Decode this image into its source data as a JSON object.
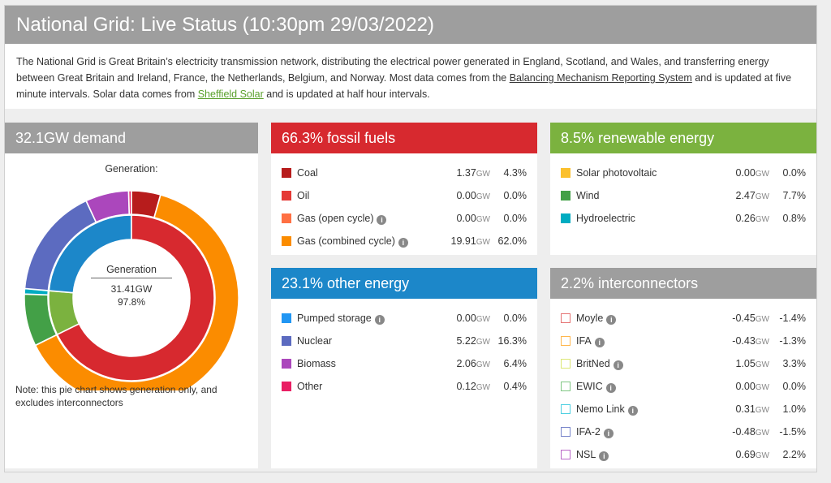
{
  "header": {
    "title": "National Grid: Live Status (10:30pm 29/03/2022)"
  },
  "intro": {
    "text_1": "The National Grid is Great Britain’s electricity transmission network, distributing the electrical power generated in England, Scotland, and Wales, and transferring energy between Great Britain and Ireland, France, the Netherlands, Belgium, and Norway. Most data comes from the ",
    "link_bmrs": "Balancing Mechanism Reporting System",
    "text_2": " and is updated at five minute intervals. Solar data comes from ",
    "link_solar": "Sheffield Solar",
    "text_3": " and is updated at half hour intervals."
  },
  "demand": {
    "title": "32.1GW demand",
    "subtitle": "Generation:",
    "center_label": "Generation",
    "center_value": "31.41GW",
    "center_pct": "97.8%",
    "note": "Note: this pie chart shows generation only, and excludes interconnectors"
  },
  "fossil": {
    "title": "66.3% fossil fuels",
    "rows": [
      {
        "label": "Coal",
        "value": "1.37",
        "pct": "4.3%",
        "color": "#b71c1c",
        "info": false
      },
      {
        "label": "Oil",
        "value": "0.00",
        "pct": "0.0%",
        "color": "#e53935",
        "info": false
      },
      {
        "label": "Gas (open cycle)",
        "value": "0.00",
        "pct": "0.0%",
        "color": "#ff7043",
        "info": true
      },
      {
        "label": "Gas (combined cycle)",
        "value": "19.91",
        "pct": "62.0%",
        "color": "#fb8c00",
        "info": true
      }
    ]
  },
  "renewable": {
    "title": "8.5% renewable energy",
    "rows": [
      {
        "label": "Solar photovoltaic",
        "value": "0.00",
        "pct": "0.0%",
        "color": "#fbc02d",
        "info": false
      },
      {
        "label": "Wind",
        "value": "2.47",
        "pct": "7.7%",
        "color": "#43a047",
        "info": false
      },
      {
        "label": "Hydroelectric",
        "value": "0.26",
        "pct": "0.8%",
        "color": "#00acc1",
        "info": false
      }
    ]
  },
  "other": {
    "title": "23.1% other energy",
    "rows": [
      {
        "label": "Pumped storage",
        "value": "0.00",
        "pct": "0.0%",
        "color": "#2196f3",
        "info": true
      },
      {
        "label": "Nuclear",
        "value": "5.22",
        "pct": "16.3%",
        "color": "#5c6bc0",
        "info": false
      },
      {
        "label": "Biomass",
        "value": "2.06",
        "pct": "6.4%",
        "color": "#ab47bc",
        "info": false
      },
      {
        "label": "Other",
        "value": "0.12",
        "pct": "0.4%",
        "color": "#e91e63",
        "info": false
      }
    ]
  },
  "interconnectors": {
    "title": "2.2% interconnectors",
    "rows": [
      {
        "label": "Moyle",
        "value": "-0.45",
        "pct": "-1.4%",
        "color": "#e57373",
        "info": true
      },
      {
        "label": "IFA",
        "value": "-0.43",
        "pct": "-1.3%",
        "color": "#ffb74d",
        "info": true
      },
      {
        "label": "BritNed",
        "value": "1.05",
        "pct": "3.3%",
        "color": "#dce775",
        "info": true
      },
      {
        "label": "EWIC",
        "value": "0.00",
        "pct": "0.0%",
        "color": "#81c784",
        "info": true
      },
      {
        "label": "Nemo Link",
        "value": "0.31",
        "pct": "1.0%",
        "color": "#4dd0e1",
        "info": true
      },
      {
        "label": "IFA-2",
        "value": "-0.48",
        "pct": "-1.5%",
        "color": "#7986cb",
        "info": true
      },
      {
        "label": "NSL",
        "value": "0.69",
        "pct": "2.2%",
        "color": "#ba68c8",
        "info": true
      }
    ]
  },
  "units": {
    "gw": "GW",
    "info_glyph": "i"
  },
  "chart_data": {
    "type": "pie",
    "rings": [
      {
        "name": "inner",
        "slices": [
          {
            "label": "fossil fuels",
            "value": 66.3,
            "color": "#d7292f"
          },
          {
            "label": "renewable energy",
            "value": 8.5,
            "color": "#7bb23f"
          },
          {
            "label": "other energy",
            "value": 23.1,
            "color": "#1c87c9"
          }
        ]
      },
      {
        "name": "outer",
        "slices": [
          {
            "label": "Coal",
            "value": 4.3,
            "color": "#b71c1c"
          },
          {
            "label": "Gas (combined cycle)",
            "value": 62.0,
            "color": "#fb8c00"
          },
          {
            "label": "Wind",
            "value": 7.7,
            "color": "#43a047"
          },
          {
            "label": "Hydroelectric",
            "value": 0.8,
            "color": "#00acc1"
          },
          {
            "label": "Nuclear",
            "value": 16.3,
            "color": "#5c6bc0"
          },
          {
            "label": "Biomass",
            "value": 6.4,
            "color": "#ab47bc"
          },
          {
            "label": "Other",
            "value": 0.4,
            "color": "#e91e63"
          }
        ]
      }
    ]
  }
}
